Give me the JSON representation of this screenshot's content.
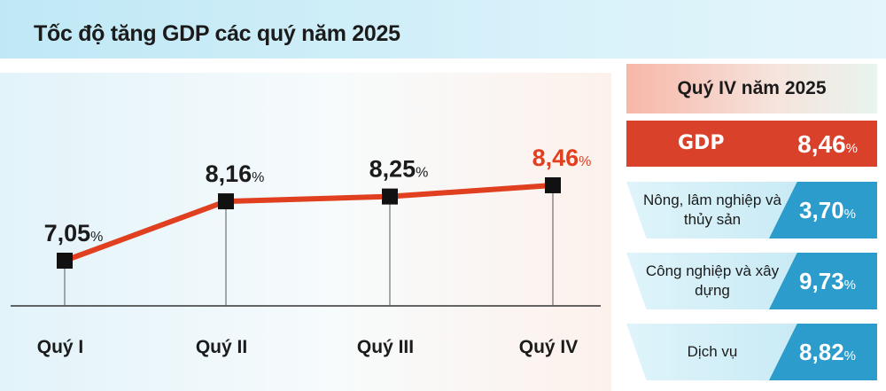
{
  "title": "Tốc độ tăng GDP các quý năm 2025",
  "chart_data": {
    "type": "line",
    "categories": [
      "Quý I",
      "Quý II",
      "Quý III",
      "Quý IV"
    ],
    "values": [
      7.05,
      8.16,
      8.25,
      8.46
    ],
    "value_labels": [
      "7,05",
      "8,16",
      "8,25",
      "8,46"
    ],
    "unit": "%",
    "line_color": "#e0401f",
    "marker_color": "#111111",
    "highlight_color": "#e0401f",
    "highlight_index": 3
  },
  "side_panel": {
    "header": "Quý IV năm 2025",
    "gdp": {
      "label": "GDP",
      "value": "8,46",
      "unit": "%"
    },
    "sectors": [
      {
        "label": "Nông, lâm nghiệp và thủy sản",
        "value": "3,70",
        "unit": "%"
      },
      {
        "label": "Công nghiệp và xây dựng",
        "value": "9,73",
        "unit": "%"
      },
      {
        "label": "Dịch vụ",
        "value": "8,82",
        "unit": "%"
      }
    ],
    "colors": {
      "gdp_box": "#d9412a",
      "sector_value": "#2c9ccd"
    }
  }
}
